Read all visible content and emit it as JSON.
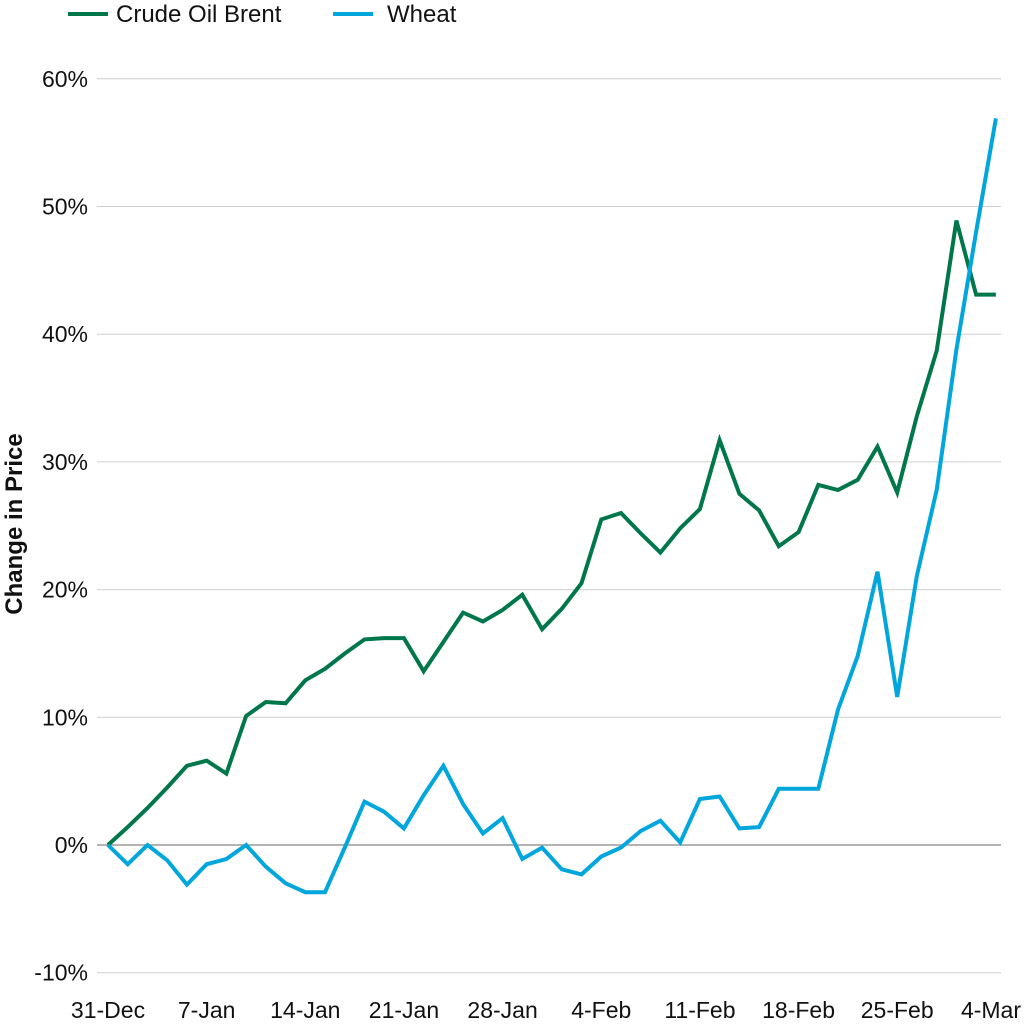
{
  "chart_data": {
    "type": "line",
    "title": "",
    "xlabel": "",
    "ylabel": "Change in Price",
    "ylim": [
      -10,
      60
    ],
    "y_ticks": [
      {
        "value": -10,
        "label": "-10%"
      },
      {
        "value": 0,
        "label": "0%"
      },
      {
        "value": 10,
        "label": "10%"
      },
      {
        "value": 20,
        "label": "20%"
      },
      {
        "value": 30,
        "label": "30%"
      },
      {
        "value": 40,
        "label": "40%"
      },
      {
        "value": 50,
        "label": "50%"
      },
      {
        "value": 60,
        "label": "60%"
      }
    ],
    "x": [
      "31-Dec",
      "3-Jan",
      "4-Jan",
      "5-Jan",
      "6-Jan",
      "7-Jan",
      "10-Jan",
      "11-Jan",
      "12-Jan",
      "13-Jan",
      "14-Jan",
      "17-Jan",
      "18-Jan",
      "19-Jan",
      "20-Jan",
      "21-Jan",
      "24-Jan",
      "25-Jan",
      "26-Jan",
      "27-Jan",
      "28-Jan",
      "31-Jan",
      "1-Feb",
      "2-Feb",
      "3-Feb",
      "4-Feb",
      "7-Feb",
      "8-Feb",
      "9-Feb",
      "10-Feb",
      "11-Feb",
      "14-Feb",
      "15-Feb",
      "16-Feb",
      "17-Feb",
      "18-Feb",
      "21-Feb",
      "22-Feb",
      "23-Feb",
      "24-Feb",
      "25-Feb",
      "28-Feb",
      "1-Mar",
      "2-Mar",
      "3-Mar",
      "4-Mar"
    ],
    "x_ticks": [
      "31-Dec",
      "7-Jan",
      "14-Jan",
      "21-Jan",
      "28-Jan",
      "4-Feb",
      "11-Feb",
      "18-Feb",
      "25-Feb",
      "4-Mar"
    ],
    "series": [
      {
        "name": "Crude Oil Brent",
        "color": "#00774a",
        "values": [
          0,
          1.4,
          2.9,
          4.5,
          6.2,
          6.6,
          5.6,
          10.1,
          11.2,
          11.1,
          12.9,
          13.8,
          15.0,
          16.1,
          16.2,
          16.2,
          13.6,
          15.9,
          18.2,
          17.5,
          18.4,
          19.6,
          16.9,
          18.5,
          20.5,
          25.5,
          26.0,
          24.4,
          22.9,
          24.8,
          26.3,
          31.7,
          27.5,
          26.2,
          23.4,
          24.5,
          28.2,
          27.8,
          28.6,
          31.2,
          27.6,
          33.6,
          38.7,
          48.9,
          43.1,
          43.1
        ]
      },
      {
        "name": "Wheat",
        "color": "#00a6dc",
        "values": [
          0,
          -1.5,
          0,
          -1.2,
          -3.1,
          -1.5,
          -1.1,
          0,
          -1.7,
          -3.0,
          -3.7,
          -3.7,
          -0.2,
          3.4,
          2.6,
          1.3,
          3.9,
          6.2,
          3.2,
          0.9,
          2.1,
          -1.1,
          -0.2,
          -1.9,
          -2.3,
          -0.9,
          -0.2,
          1.1,
          1.9,
          0.2,
          3.6,
          3.8,
          1.3,
          1.4,
          4.4,
          4.4,
          4.4,
          10.6,
          14.8,
          21.4,
          11.6,
          21.1,
          27.8,
          38.8,
          48.0,
          56.9
        ]
      }
    ],
    "grid": true,
    "legend": "top-left"
  }
}
